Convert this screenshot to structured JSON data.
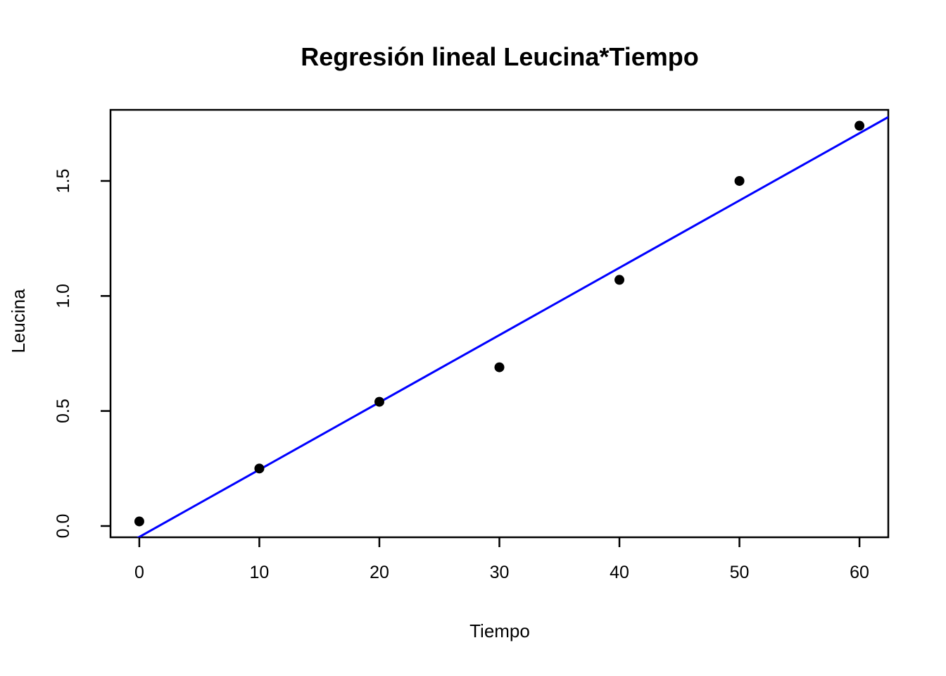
{
  "chart_data": {
    "type": "scatter",
    "title": "Regresión lineal Leucina*Tiempo",
    "xlabel": "Tiempo",
    "ylabel": "Leucina",
    "x": [
      0,
      10,
      20,
      30,
      40,
      50,
      60
    ],
    "y": [
      0.02,
      0.25,
      0.54,
      0.69,
      1.07,
      1.5,
      1.74
    ],
    "xticks": [
      0,
      10,
      20,
      30,
      40,
      50,
      60
    ],
    "xtick_labels": [
      "0",
      "10",
      "20",
      "30",
      "40",
      "50",
      "60"
    ],
    "ytick_values": [
      0.0,
      0.5,
      1.0,
      1.5
    ],
    "ytick_labels": [
      "0.0",
      "0.5",
      "1.0",
      "1.5"
    ],
    "xlim": [
      -2.4,
      62.4
    ],
    "ylim": [
      -0.049,
      1.809
    ],
    "fit_line": {
      "slope": 0.02925,
      "intercept": -0.0475,
      "color": "#0000ff"
    },
    "point_color": "#000000",
    "frame_color": "#000000",
    "background_color": "#ffffff",
    "grid": "off",
    "legend": "none"
  }
}
